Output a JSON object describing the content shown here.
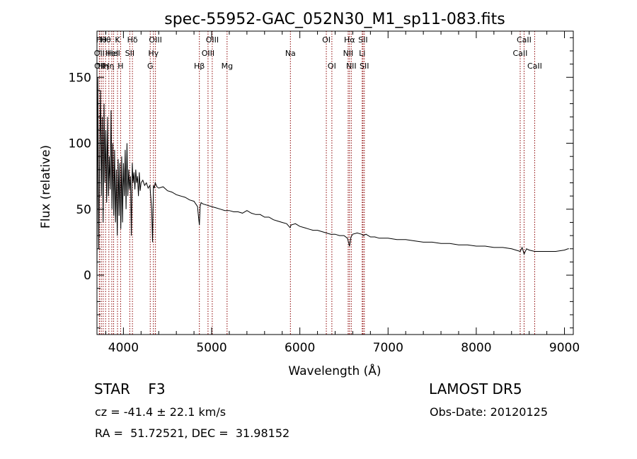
{
  "chart_data": {
    "type": "line",
    "title": "spec-55952-GAC_052N30_M1_sp11-083.fits",
    "xlabel": "Wavelength (Å)",
    "ylabel": "Flux (relative)",
    "xlim": [
      3700,
      9100
    ],
    "ylim": [
      -45,
      185
    ],
    "xticks": [
      4000,
      5000,
      6000,
      7000,
      8000,
      9000
    ],
    "yticks": [
      0,
      50,
      100,
      150
    ],
    "grid": false,
    "line_color": "#000000",
    "marker_color": "#8b0000",
    "series": [
      {
        "values_note_free": true,
        "x": [
          3700,
          3710,
          3720,
          3730,
          3740,
          3750,
          3760,
          3770,
          3780,
          3790,
          3800,
          3810,
          3820,
          3830,
          3840,
          3850,
          3860,
          3870,
          3880,
          3890,
          3900,
          3910,
          3920,
          3930,
          3940,
          3950,
          3960,
          3970,
          3980,
          3990,
          4000,
          4010,
          4020,
          4030,
          4040,
          4050,
          4060,
          4070,
          4080,
          4090,
          4100,
          4110,
          4120,
          4130,
          4140,
          4150,
          4160,
          4170,
          4180,
          4190,
          4200,
          4220,
          4240,
          4260,
          4280,
          4300,
          4320,
          4330,
          4340,
          4350,
          4360,
          4380,
          4400,
          4450,
          4500,
          4550,
          4600,
          4650,
          4700,
          4750,
          4800,
          4840,
          4850,
          4861,
          4870,
          4880,
          4900,
          4950,
          5000,
          5050,
          5100,
          5150,
          5200,
          5250,
          5300,
          5350,
          5400,
          5450,
          5500,
          5550,
          5600,
          5650,
          5700,
          5750,
          5800,
          5850,
          5890,
          5900,
          5950,
          6000,
          6050,
          6100,
          6150,
          6200,
          6250,
          6300,
          6350,
          6400,
          6450,
          6500,
          6540,
          6563,
          6580,
          6600,
          6650,
          6700,
          6720,
          6750,
          6800,
          6850,
          6900,
          6950,
          7000,
          7100,
          7200,
          7300,
          7400,
          7500,
          7600,
          7700,
          7800,
          7900,
          8000,
          8100,
          8200,
          8300,
          8400,
          8498,
          8520,
          8542,
          8570,
          8600,
          8662,
          8700,
          8800,
          8900,
          9000,
          9040,
          9050
        ],
        "y": [
          0,
          150,
          20,
          90,
          140,
          60,
          120,
          40,
          130,
          70,
          110,
          55,
          120,
          60,
          90,
          65,
          125,
          50,
          100,
          45,
          95,
          40,
          80,
          30,
          88,
          45,
          85,
          35,
          90,
          40,
          85,
          60,
          95,
          50,
          100,
          60,
          80,
          65,
          75,
          30,
          85,
          70,
          78,
          65,
          80,
          70,
          75,
          60,
          78,
          64,
          70,
          72,
          68,
          70,
          66,
          68,
          50,
          25,
          68,
          66,
          70,
          67,
          66,
          67,
          64,
          63,
          61,
          60,
          59,
          57,
          56,
          52,
          45,
          38,
          52,
          55,
          54,
          53,
          52,
          51,
          50,
          49,
          49,
          48,
          48,
          47,
          49,
          47,
          46,
          46,
          44,
          44,
          42,
          41,
          40,
          39,
          36,
          38,
          39,
          37,
          36,
          35,
          34,
          34,
          33,
          32,
          31,
          31,
          30,
          30,
          28,
          22,
          29,
          31,
          32,
          31,
          30,
          31,
          29,
          29,
          28,
          28,
          28,
          27,
          27,
          26,
          25,
          25,
          24,
          24,
          23,
          23,
          22,
          22,
          21,
          21,
          20,
          18,
          21,
          16,
          20,
          19,
          18,
          18,
          18,
          18,
          19,
          20,
          20
        ]
      }
    ],
    "line_markers": [
      {
        "wavelength": 3727,
        "label": "OII",
        "row": 1
      },
      {
        "wavelength": 3730,
        "label": "OII",
        "row": 2
      },
      {
        "wavelength": 3750,
        "label": "Hθ",
        "row": 0
      },
      {
        "wavelength": 3771,
        "label": "Hη",
        "row": 2
      },
      {
        "wavelength": 3798,
        "label": "Hθ",
        "row": 0
      },
      {
        "wavelength": 3835,
        "label": "Hη",
        "row": 2
      },
      {
        "wavelength": 3868,
        "label": "HeI",
        "row": 1
      },
      {
        "wavelength": 3889,
        "label": "HeI",
        "row": 1
      },
      {
        "wavelength": 3933,
        "label": "K",
        "row": 0
      },
      {
        "wavelength": 3968,
        "label": "H",
        "row": 2
      },
      {
        "wavelength": 4072,
        "label": "SII",
        "row": 1
      },
      {
        "wavelength": 4102,
        "label": "Hδ",
        "row": 0
      },
      {
        "wavelength": 4304,
        "label": "G",
        "row": 2
      },
      {
        "wavelength": 4340,
        "label": "Hγ",
        "row": 1
      },
      {
        "wavelength": 4363,
        "label": "OIII",
        "row": 0
      },
      {
        "wavelength": 4861,
        "label": "Hβ",
        "row": 2
      },
      {
        "wavelength": 4959,
        "label": "OIII",
        "row": 1
      },
      {
        "wavelength": 5007,
        "label": "OIII",
        "row": 0
      },
      {
        "wavelength": 5175,
        "label": "Mg",
        "row": 2
      },
      {
        "wavelength": 5893,
        "label": "Na",
        "row": 1
      },
      {
        "wavelength": 6300,
        "label": "OI",
        "row": 0
      },
      {
        "wavelength": 6363,
        "label": "OI",
        "row": 2
      },
      {
        "wavelength": 6548,
        "label": "NII",
        "row": 1
      },
      {
        "wavelength": 6563,
        "label": "Hα",
        "row": 0
      },
      {
        "wavelength": 6583,
        "label": "NII",
        "row": 2
      },
      {
        "wavelength": 6707,
        "label": "Li",
        "row": 1
      },
      {
        "wavelength": 6716,
        "label": "SII",
        "row": 0
      },
      {
        "wavelength": 6731,
        "label": "SII",
        "row": 2
      },
      {
        "wavelength": 8498,
        "label": "CaII",
        "row": 1
      },
      {
        "wavelength": 8542,
        "label": "CaII",
        "row": 0
      },
      {
        "wavelength": 8662,
        "label": "CaII",
        "row": 2
      }
    ]
  },
  "info": {
    "object_class": "STAR",
    "subclass": "F3",
    "survey": "LAMOST DR5",
    "cz_text": "cz = -41.4 ± 22.1 km/s",
    "obs_date": "Obs-Date: 20120125",
    "radec_text": "RA =  51.72521, DEC =  31.98152"
  }
}
